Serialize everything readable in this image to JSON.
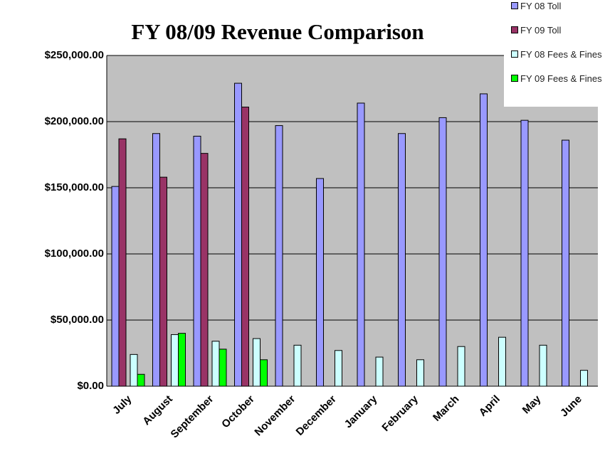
{
  "chart_data": {
    "type": "bar",
    "title": "FY 08/09 Revenue Comparison",
    "categories": [
      "July",
      "August",
      "September",
      "October",
      "November",
      "December",
      "January",
      "February",
      "March",
      "April",
      "May",
      "June"
    ],
    "series": [
      {
        "name": "FY 08 Toll",
        "color": "#9999ff",
        "values": [
          151000,
          191000,
          189000,
          229000,
          197000,
          157000,
          214000,
          191000,
          203000,
          221000,
          201000,
          186000
        ]
      },
      {
        "name": "FY 09 Toll",
        "color": "#993366",
        "values": [
          187000,
          158000,
          176000,
          211000,
          null,
          null,
          null,
          null,
          null,
          null,
          null,
          null
        ]
      },
      {
        "name": "FY 08 Fees & Fines",
        "color": "#ccffff",
        "values": [
          24000,
          39000,
          34000,
          36000,
          31000,
          27000,
          22000,
          20000,
          30000,
          37000,
          31000,
          12000
        ]
      },
      {
        "name": "FY 09 Fees & Fines",
        "color": "#00ff00",
        "values": [
          9000,
          40000,
          28000,
          20000,
          null,
          null,
          null,
          null,
          null,
          null,
          null,
          null
        ]
      }
    ],
    "ylim": [
      0,
      250000
    ],
    "yticks": [
      {
        "value": 0,
        "label": "$0.00"
      },
      {
        "value": 50000,
        "label": "$50,000.00"
      },
      {
        "value": 100000,
        "label": "$100,000.00"
      },
      {
        "value": 150000,
        "label": "$150,000.00"
      },
      {
        "value": 200000,
        "label": "$200,000.00"
      },
      {
        "value": 250000,
        "label": "$250,000.00"
      }
    ],
    "grid": true,
    "background": "#c0c0c0",
    "legend": "top-right"
  }
}
